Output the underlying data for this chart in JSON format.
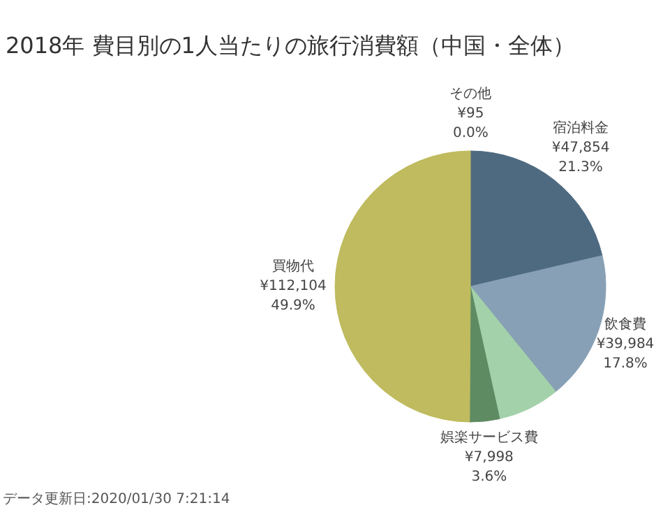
{
  "chart_data": {
    "type": "pie",
    "title": "2018年 費目別の1人当たりの旅行消費額（中国・全体）",
    "categories": [
      "その他",
      "宿泊料金",
      "飲食費",
      null,
      "娯楽サービス費",
      "買物代"
    ],
    "values": [
      95,
      47854,
      39984,
      16600,
      7998,
      112104
    ],
    "colors": [
      "#e15759",
      "#4e6a81",
      "#87a0b5",
      "#a3d1a9",
      "#5e8b62",
      "#bfbb5e"
    ],
    "value_labels": [
      "¥95\n0.0%",
      "¥47,854\n21.3%",
      "¥39,984\n17.8%",
      null,
      "¥7,998\n3.6%",
      "¥112,104\n49.9%"
    ],
    "annotations": [
      "データ更新日:2020/01/30 7:21:14"
    ]
  }
}
